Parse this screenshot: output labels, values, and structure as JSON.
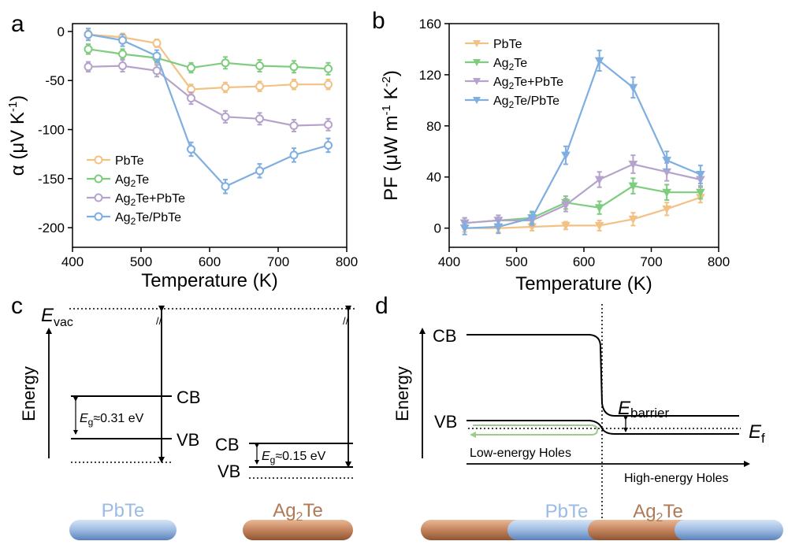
{
  "panels": {
    "a": {
      "label": "a",
      "xlabel": "Temperature (K)",
      "ylabel_main": "α (μV K",
      "ylabel_sup": "-1",
      "ylabel_end": ")"
    },
    "b": {
      "label": "b",
      "xlabel": "Temperature (K)",
      "ylabel_main": "PF (μW m",
      "ylabel_sup1": "-1",
      "ylabel_mid": " K",
      "ylabel_sup2": "-2",
      "ylabel_end": ")"
    },
    "c": {
      "label": "c",
      "evac_main": "E",
      "evac_sub": "vac",
      "energy": "Energy",
      "pbte_cb": "CB",
      "pbte_vb": "VB",
      "pbte_gap_main": "E",
      "pbte_gap_sub": "g",
      "pbte_gap_value": "≈0.31 eV",
      "ag_cb": "CB",
      "ag_vb": "VB",
      "ag_gap_main": "E",
      "ag_gap_sub": "g",
      "ag_gap_value": "≈0.15 eV",
      "pbte_name": "PbTe",
      "ag_name_main": "Ag",
      "ag_name_sub": "2",
      "ag_name_end": "Te"
    },
    "d": {
      "label": "d",
      "energy": "Energy",
      "cb": "CB",
      "vb": "VB",
      "barrier_main": "E",
      "barrier_sub": "barrier",
      "ef_main": "E",
      "ef_sub": "f",
      "low_holes": "Low-energy Holes",
      "high_holes": "High-energy Holes",
      "pbte_name": "PbTe",
      "ag_name_main": "Ag",
      "ag_name_sub": "2",
      "ag_name_end": "Te"
    }
  },
  "colors": {
    "pbte": "#F2C184",
    "ag2te": "#7ECC7E",
    "ag2te_plus_pbte": "#B5A3CC",
    "ag2te_on_pbte": "#7FAEE0",
    "rod_blue": "#A9C4E6",
    "rod_brown": "#C98A63",
    "text_blue": "#9BBBE3",
    "text_brown": "#B07A57"
  },
  "chart_data": [
    {
      "type": "line",
      "x": [
        423,
        473,
        523,
        573,
        623,
        673,
        723,
        773
      ],
      "xlim": [
        400,
        800
      ],
      "xticks": [
        "400",
        "500",
        "600",
        "700",
        "800"
      ],
      "ylim": [
        -220,
        8
      ],
      "yticks": [
        "0",
        "-50",
        "-100",
        "-150",
        "-200"
      ],
      "legend_placement": "bottom-left",
      "series": [
        {
          "name_main": "PbTe",
          "name_sub": "",
          "name_end": "",
          "values": [
            -3,
            -6,
            -12,
            -59,
            -57,
            -56,
            -54,
            -54
          ],
          "err": [
            4,
            4,
            4,
            5,
            5,
            5,
            5,
            5
          ]
        },
        {
          "name_main": "Ag",
          "name_sub": "2",
          "name_end": "Te",
          "values": [
            -18,
            -23,
            -27,
            -37,
            -32,
            -35,
            -36,
            -38
          ],
          "err": [
            5,
            5,
            5,
            5,
            6,
            6,
            6,
            6
          ]
        },
        {
          "name_main": "Ag",
          "name_sub": "2",
          "name_end": "Te+PbTe",
          "values": [
            -36,
            -35,
            -40,
            -68,
            -87,
            -89,
            -96,
            -95
          ],
          "err": [
            5,
            6,
            6,
            6,
            6,
            6,
            6,
            6
          ]
        },
        {
          "name_main": "Ag",
          "name_sub": "2",
          "name_end": "Te/PbTe",
          "values": [
            -3,
            -9,
            -25,
            -120,
            -158,
            -142,
            -126,
            -116
          ],
          "err": [
            6,
            6,
            6,
            7,
            7,
            7,
            7,
            7
          ]
        }
      ]
    },
    {
      "type": "line",
      "x": [
        423,
        473,
        523,
        573,
        623,
        673,
        723,
        773
      ],
      "xlim": [
        400,
        800
      ],
      "xticks": [
        "400",
        "500",
        "600",
        "700",
        "800"
      ],
      "ylim": [
        -15,
        160
      ],
      "yticks": [
        "0",
        "40",
        "80",
        "120",
        "160"
      ],
      "legend_placement": "top-left",
      "series": [
        {
          "name_main": "PbTe",
          "name_sub": "",
          "name_end": "",
          "values": [
            0,
            0,
            1,
            2,
            2,
            7,
            15,
            24
          ],
          "err": [
            3,
            3,
            3,
            3,
            4,
            5,
            5,
            4
          ]
        },
        {
          "name_main": "Ag",
          "name_sub": "2",
          "name_end": "Te",
          "values": [
            4,
            6,
            8,
            20,
            16,
            33,
            28,
            28
          ],
          "err": [
            4,
            4,
            4,
            5,
            5,
            6,
            6,
            5
          ]
        },
        {
          "name_main": "Ag",
          "name_sub": "2",
          "name_end": "Te+PbTe",
          "values": [
            4,
            6,
            6,
            18,
            38,
            50,
            44,
            38
          ],
          "err": [
            4,
            4,
            4,
            5,
            6,
            7,
            7,
            6
          ]
        },
        {
          "name_main": "Ag",
          "name_sub": "2",
          "name_end": "Te/PbTe",
          "values": [
            0,
            1,
            8,
            57,
            131,
            110,
            53,
            42
          ],
          "err": [
            5,
            5,
            5,
            7,
            8,
            8,
            7,
            7
          ]
        }
      ]
    }
  ]
}
